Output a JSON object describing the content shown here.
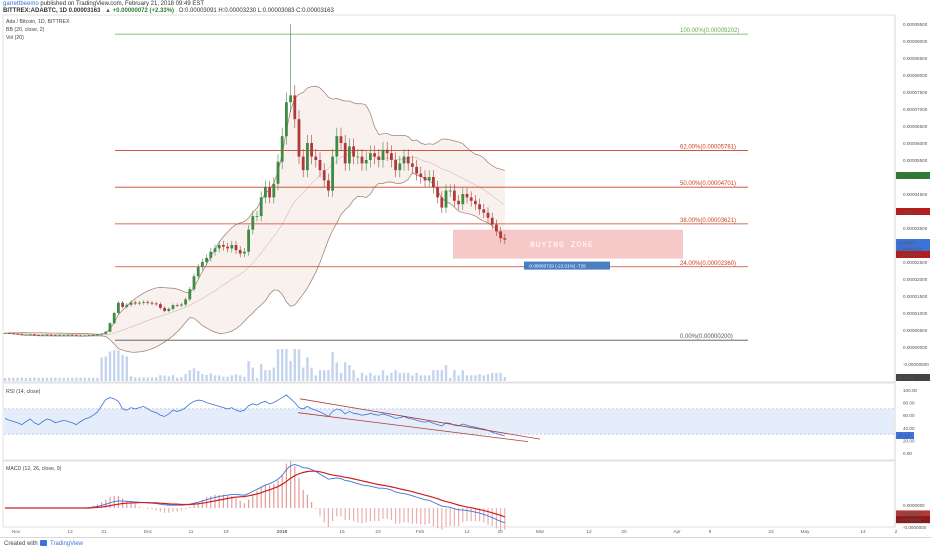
{
  "header": {
    "author": "garrettbeemo",
    "published": "published on TradingView.com, February 21, 2018 09:49 EST",
    "symbol_line": "BITTREX:ADABTC, 1D  0.00003163",
    "change": "▲ +0.00000072 (+2.33%)",
    "ohlc": "O:0.00003091  H:0.00003230  L:0.00003083  C:0.00003163"
  },
  "legend": {
    "title": "Ada / Bitcoin, 1D, BITTREX",
    "bb": "BB (20, close, 2)",
    "vol": "Vol (20)",
    "rsi": "RSI (14, close)",
    "macd": "MACD (12, 26, close, 9)"
  },
  "footer": {
    "created_with": "Created with",
    "brand": "TradingView"
  },
  "colors": {
    "candle_up": "#3f8a45",
    "candle_down": "#b03a3a",
    "bb_band": "#9c7a6a",
    "fib_green": "#6aa84f",
    "fib_red": "#cc4125",
    "fib_gray": "#555555",
    "buy_zone": "#ef9a9a",
    "rsi_line": "#3b73d8",
    "macd_signal": "#cc1f1f",
    "measure": "#4a7fc1"
  },
  "chart_data": {
    "type": "candlestick",
    "symbol": "BITTREX:ADABTC",
    "interval": "1D",
    "price_axis_ticks": [
      "0.00009500",
      "0.00009000",
      "0.00008500",
      "0.00008000",
      "0.00007500",
      "0.00007000",
      "0.00006500",
      "0.00006000",
      "0.00005500",
      "0.00005000",
      "0.00004500",
      "0.00004000",
      "0.00003500",
      "0.00003000",
      "0.00002500",
      "0.00002000",
      "0.00001500",
      "0.00001000",
      "0.00000500",
      "0.00000000",
      "-0.00000500"
    ],
    "time_axis_ticks": [
      "Nov",
      "13",
      "21",
      "Dec",
      "11",
      "19",
      "2018",
      "15",
      "23",
      "Feb",
      "12",
      "20",
      "Mar",
      "12",
      "20",
      "Apr",
      "9",
      "23",
      "May",
      "14",
      "2"
    ],
    "price_badges": [
      {
        "value": "0.00005129",
        "color": "#2e7d32"
      },
      {
        "value": "0.00004101",
        "color": "#b71c1c"
      },
      {
        "value": "ADABTC",
        "color": "#3b73d8"
      },
      {
        "value": "0.00003163",
        "color": "#3b73d8"
      },
      {
        "value": "0.00003074",
        "color": "#b71c1c"
      },
      {
        "value": "86.78M",
        "color": "#444444"
      }
    ],
    "closes": [
      4.1e-06,
      4e-06,
      3.9e-06,
      3.8e-06,
      3.6e-06,
      3.6e-06,
      3.7e-06,
      3.5e-06,
      3.4e-06,
      3.5e-06,
      3.6e-06,
      3.5e-06,
      3.4e-06,
      3.5e-06,
      3.5e-06,
      3.6e-06,
      3.5e-06,
      3.4e-06,
      3.3e-06,
      3.4e-06,
      3.5e-06,
      3.6e-06,
      3.7e-06,
      3.9e-06,
      4.5e-06,
      7e-06,
      1e-05,
      1.3e-05,
      1.18e-05,
      1.24e-05,
      1.31e-05,
      1.28e-05,
      1.3e-05,
      1.32e-05,
      1.3e-05,
      1.28e-05,
      1.26e-05,
      1.15e-05,
      1.06e-05,
      1.12e-05,
      1.23e-05,
      1.22e-05,
      1.25e-05,
      1.4e-05,
      1.7e-05,
      2.08e-05,
      2.35e-05,
      2.5e-05,
      2.62e-05,
      2.8e-05,
      2.9e-05,
      3e-05,
      2.95e-05,
      2.9e-05,
      3e-05,
      2.85e-05,
      2.75e-05,
      2.8e-05,
      3.45e-05,
      3.85e-05,
      3.85e-05,
      4.4e-05,
      4.7e-05,
      4.4e-05,
      4.8e-05,
      5.45e-05,
      6.2e-05,
      7.2e-05,
      7.4e-05,
      6.7e-05,
      5.6e-05,
      5.2e-05,
      6e-05,
      5.6e-05,
      5.5e-05,
      5.2e-05,
      4.9e-05,
      4.6e-05,
      5.6e-05,
      6.2e-05,
      6e-05,
      5.4e-05,
      5.9e-05,
      5.6e-05,
      5.6e-05,
      5.4e-05,
      5.5e-05,
      5.7e-05,
      5.6e-05,
      5.5e-05,
      5.8e-05,
      5.7e-05,
      5.5e-05,
      5.2e-05,
      5.4e-05,
      5.6e-05,
      5.4e-05,
      5.3e-05,
      5.1e-05,
      5e-05,
      4.9e-05,
      5e-05,
      4.7e-05,
      4.4e-05,
      4.1e-05,
      4.6e-05,
      4.6e-05,
      4.3e-05,
      4.2e-05,
      4.5e-05,
      4.4e-05,
      4.3e-05,
      4.2e-05,
      4.05e-05,
      3.95e-05,
      3.8e-05,
      3.6e-05,
      3.4e-05,
      3.2e-05,
      3.16e-05
    ],
    "fib_levels": [
      {
        "label": "100.00%(0.00009202)",
        "price": 9.202e-05,
        "color": "#6aa84f"
      },
      {
        "label": "62.00%(0.00005781)",
        "price": 5.781e-05,
        "color": "#cc4125"
      },
      {
        "label": "50.00%(0.00004701)",
        "price": 4.701e-05,
        "color": "#cc4125"
      },
      {
        "label": "38.00%(0.00003621)",
        "price": 3.621e-05,
        "color": "#cc4125"
      },
      {
        "label": "24.00%(0.00002360)",
        "price": 2.36e-05,
        "color": "#cc4125"
      },
      {
        "label": "0.00%(0.00000200)",
        "price": 2e-06,
        "color": "#555555"
      }
    ],
    "buy_zone": {
      "label": "BUYING ZONE",
      "top": 3.45e-05,
      "bottom": 2.6e-05
    },
    "measure_label": "-0.00000729 (-22.01%) -729",
    "rsi": {
      "ticks": [
        "100.00",
        "80.00",
        "60.00",
        "40.00",
        "20.00",
        "0.00"
      ],
      "last_value": "27.15",
      "band_upper": 70,
      "band_lower": 30,
      "values": [
        55,
        52,
        50,
        48,
        45,
        50,
        54,
        48,
        45,
        50,
        54,
        52,
        48,
        50,
        52,
        50,
        48,
        45,
        50,
        54,
        56,
        60,
        65,
        75,
        85,
        88,
        86,
        82,
        70,
        68,
        72,
        70,
        72,
        74,
        70,
        66,
        64,
        60,
        58,
        62,
        68,
        66,
        68,
        72,
        78,
        82,
        84,
        83,
        80,
        78,
        76,
        74,
        72,
        70,
        72,
        68,
        66,
        68,
        75,
        78,
        76,
        80,
        82,
        78,
        80,
        84,
        88,
        92,
        86,
        80,
        72,
        70,
        74,
        70,
        68,
        65,
        62,
        58,
        66,
        70,
        68,
        62,
        66,
        63,
        62,
        60,
        61,
        63,
        61,
        60,
        62,
        60,
        58,
        55,
        56,
        58,
        55,
        54,
        52,
        50,
        49,
        50,
        47,
        45,
        43,
        48,
        47,
        44,
        43,
        46,
        44,
        42,
        41,
        39,
        38,
        36,
        33,
        31,
        29,
        27
      ]
    },
    "macd": {
      "ticks": [
        "0.0000000",
        "-0.0000000"
      ],
      "badge_top": "-0.0000000",
      "badge_bottom": "-0.0000000",
      "macd": [
        0,
        0,
        0,
        0,
        0,
        0,
        0,
        0,
        0,
        0,
        0,
        0,
        0,
        0,
        0,
        0,
        0,
        0,
        0,
        0,
        0.01,
        0.03,
        0.05,
        0.08,
        0.12,
        0.16,
        0.2,
        0.22,
        0.22,
        0.21,
        0.2,
        0.19,
        0.18,
        0.17,
        0.16,
        0.15,
        0.14,
        0.12,
        0.1,
        0.09,
        0.09,
        0.09,
        0.09,
        0.1,
        0.12,
        0.15,
        0.18,
        0.22,
        0.26,
        0.3,
        0.33,
        0.36,
        0.38,
        0.4,
        0.42,
        0.42,
        0.41,
        0.4,
        0.45,
        0.52,
        0.58,
        0.65,
        0.72,
        0.76,
        0.82,
        0.9,
        1.02,
        1.2,
        1.32,
        1.36,
        1.32,
        1.26,
        1.25,
        1.2,
        1.14,
        1.06,
        0.98,
        0.9,
        0.92,
        0.94,
        0.92,
        0.86,
        0.84,
        0.8,
        0.76,
        0.72,
        0.7,
        0.68,
        0.65,
        0.62,
        0.62,
        0.6,
        0.56,
        0.5,
        0.47,
        0.45,
        0.42,
        0.38,
        0.34,
        0.3,
        0.26,
        0.24,
        0.18,
        0.12,
        0.06,
        0.04,
        0.02,
        -0.02,
        -0.06,
        -0.06,
        -0.08,
        -0.1,
        -0.13,
        -0.16,
        -0.2,
        -0.25,
        -0.3,
        -0.36,
        -0.42,
        -0.46
      ],
      "signal": [
        0,
        0,
        0,
        0,
        0,
        0,
        0,
        0,
        0,
        0,
        0,
        0,
        0,
        0,
        0,
        0,
        0,
        0,
        0,
        0,
        0,
        0.01,
        0.02,
        0.03,
        0.05,
        0.07,
        0.1,
        0.12,
        0.14,
        0.15,
        0.16,
        0.16,
        0.17,
        0.17,
        0.17,
        0.16,
        0.16,
        0.15,
        0.14,
        0.13,
        0.12,
        0.12,
        0.11,
        0.11,
        0.11,
        0.12,
        0.13,
        0.15,
        0.17,
        0.2,
        0.22,
        0.25,
        0.27,
        0.3,
        0.32,
        0.34,
        0.35,
        0.36,
        0.38,
        0.41,
        0.44,
        0.48,
        0.53,
        0.57,
        0.62,
        0.67,
        0.74,
        0.83,
        0.93,
        1.01,
        1.07,
        1.11,
        1.14,
        1.15,
        1.15,
        1.13,
        1.1,
        1.06,
        1.03,
        1.01,
        0.99,
        0.96,
        0.94,
        0.91,
        0.88,
        0.85,
        0.82,
        0.79,
        0.76,
        0.73,
        0.71,
        0.69,
        0.66,
        0.63,
        0.6,
        0.57,
        0.54,
        0.51,
        0.47,
        0.44,
        0.4,
        0.37,
        0.33,
        0.29,
        0.24,
        0.2,
        0.17,
        0.13,
        0.09,
        0.06,
        0.03,
        0.01,
        -0.02,
        -0.05,
        -0.08,
        -0.11,
        -0.15,
        -0.19,
        -0.23,
        -0.28
      ]
    }
  }
}
